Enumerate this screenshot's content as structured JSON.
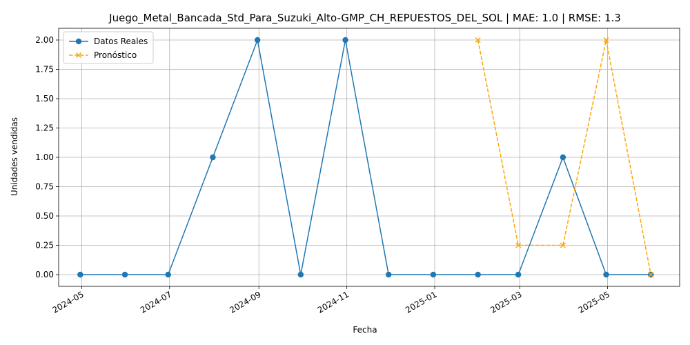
{
  "chart_data": {
    "type": "line",
    "title": "Juego_Metal_Bancada_Std_Para_Suzuki_Alto-GMP_CH_REPUESTOS_DEL_SOL | MAE: 1.0 | RMSE: 1.3",
    "xlabel": "Fecha",
    "ylabel": "Unidades vendidas",
    "x_range": [
      "2024-04-15",
      "2025-06-20"
    ],
    "ylim": [
      -0.1,
      2.1
    ],
    "x_ticks": [
      "2024-05",
      "2024-07",
      "2024-09",
      "2024-11",
      "2025-01",
      "2025-03",
      "2025-05"
    ],
    "y_ticks": [
      "0.00",
      "0.25",
      "0.50",
      "0.75",
      "1.00",
      "1.25",
      "1.50",
      "1.75",
      "2.00"
    ],
    "grid": true,
    "legend_position": "top-left",
    "series": [
      {
        "name": "Datos Reales",
        "color": "#1f77b4",
        "style": "solid",
        "marker": "circle",
        "x": [
          "2024-04-30",
          "2024-05-31",
          "2024-06-30",
          "2024-07-31",
          "2024-08-31",
          "2024-09-30",
          "2024-10-31",
          "2024-11-30",
          "2024-12-31",
          "2025-01-31",
          "2025-02-28",
          "2025-03-31",
          "2025-04-30",
          "2025-05-31"
        ],
        "values": [
          0,
          0,
          0,
          1,
          2,
          0,
          2,
          0,
          0,
          0,
          0,
          1,
          0,
          0
        ]
      },
      {
        "name": "Pronóstico",
        "color": "#ffa500",
        "style": "dashed",
        "marker": "x",
        "x": [
          "2025-01-31",
          "2025-02-28",
          "2025-03-31",
          "2025-04-30",
          "2025-05-31"
        ],
        "values": [
          2,
          0.25,
          0.25,
          2,
          0
        ]
      }
    ]
  }
}
